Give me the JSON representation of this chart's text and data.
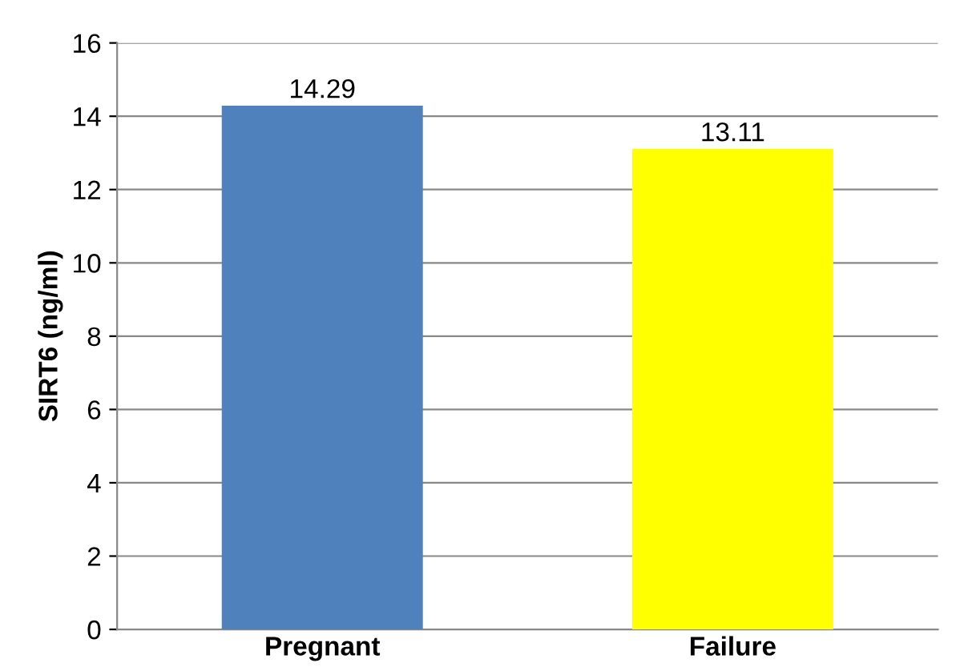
{
  "chart_data": {
    "type": "bar",
    "ylabel": "SIRT6 (ng/ml)",
    "categories": [
      "Pregnant",
      "Failure"
    ],
    "values": [
      14.29,
      13.11
    ],
    "colors": [
      "#4f81bd",
      "#ffff00"
    ],
    "ylim": [
      0,
      16
    ],
    "yticks": [
      0,
      2,
      4,
      6,
      8,
      10,
      12,
      14,
      16
    ],
    "grid": "y",
    "data_labels": true
  }
}
